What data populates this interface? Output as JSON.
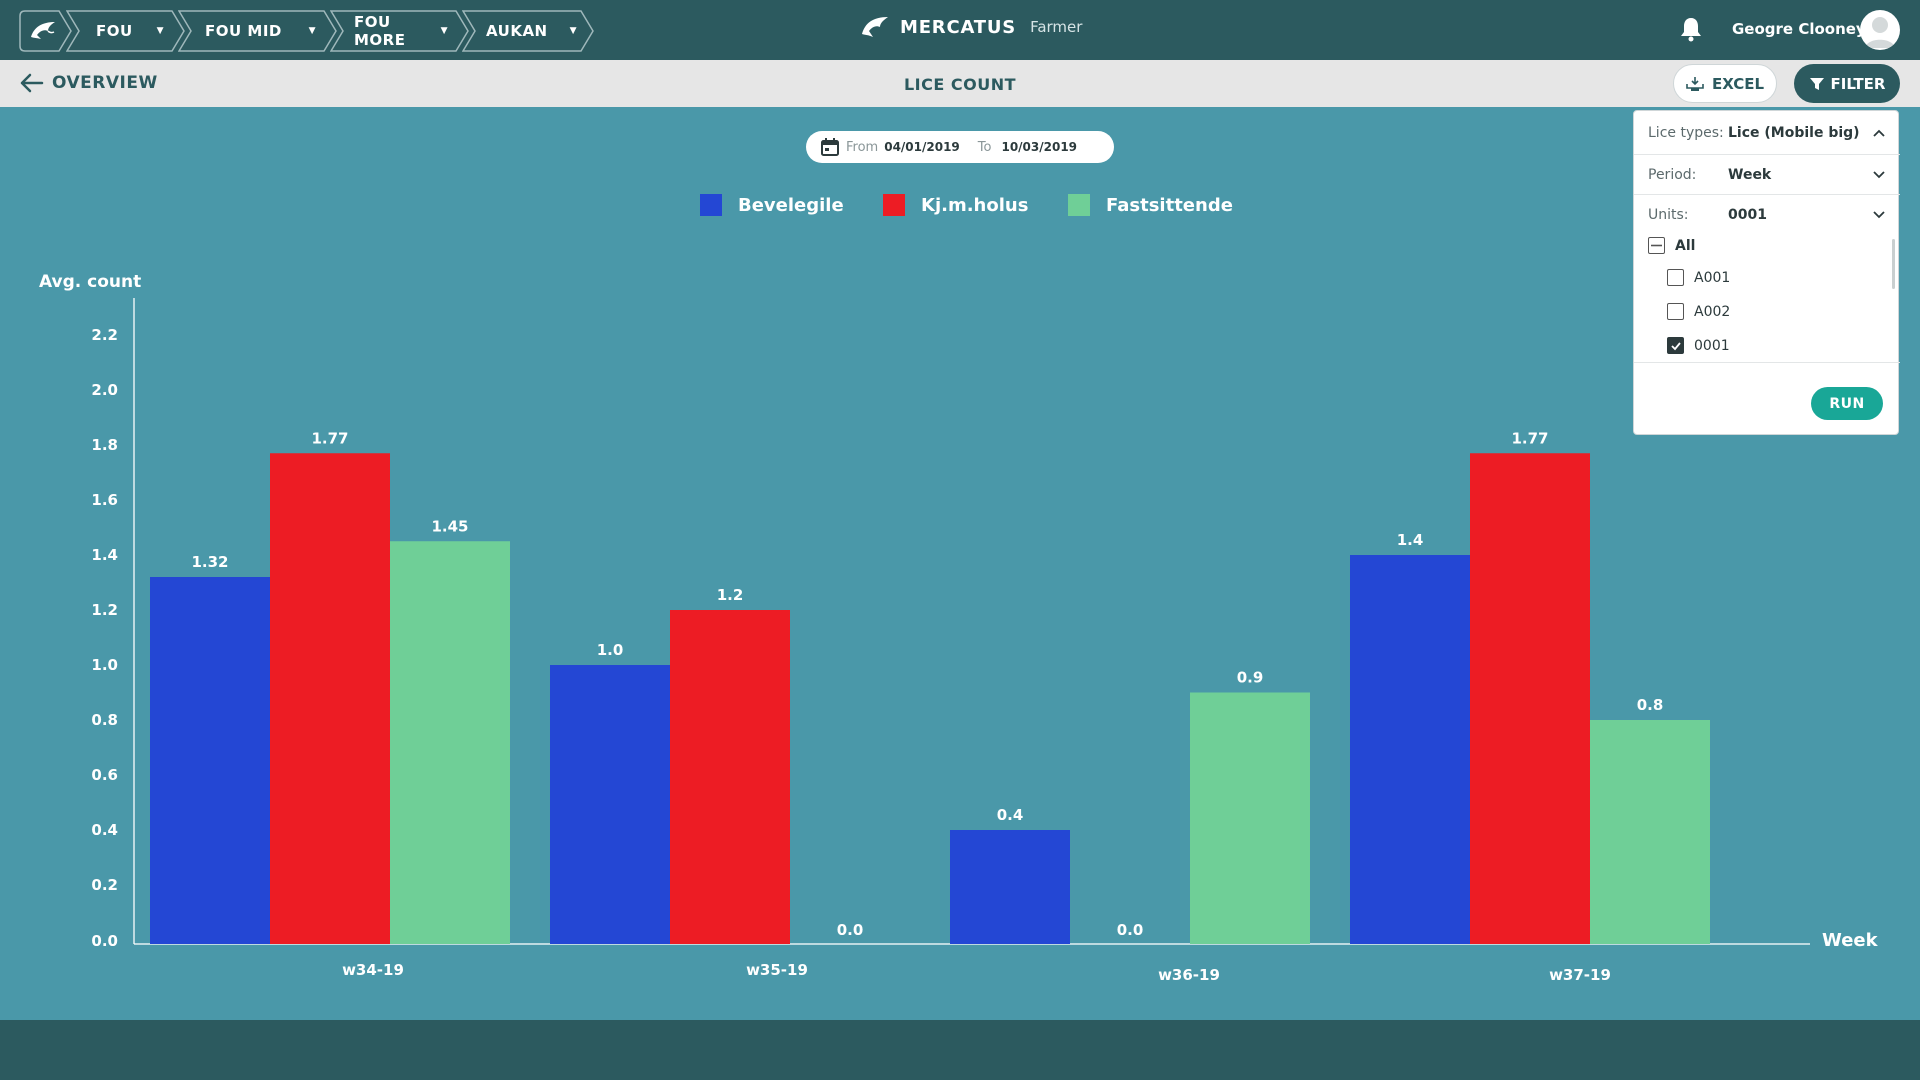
{
  "breadcrumbs": [
    {
      "label": "FOU"
    },
    {
      "label": "FOU MID"
    },
    {
      "label": "FOU MORE"
    },
    {
      "label": "AUKAN"
    }
  ],
  "brand": {
    "name": "MERCATUS",
    "product": "Farmer"
  },
  "user": {
    "name": "Gеogre Clooney"
  },
  "subheader": {
    "back_label": "OVERVIEW",
    "title": "LICE COUNT",
    "excel_label": "EXCEL",
    "filter_label": "FILTER"
  },
  "daterange": {
    "from_label": "From",
    "from_value": "04/01/2019",
    "to_label": "To",
    "to_value": "10/03/2019"
  },
  "filter_panel": {
    "lice_types_label": "Lice types:",
    "lice_types_value": "Lice (Mobile big)",
    "period_label": "Period:",
    "period_value": "Week",
    "units_label": "Units:",
    "units_value": "0001",
    "all_label": "All",
    "units": [
      {
        "label": "A001",
        "checked": false
      },
      {
        "label": "A002",
        "checked": false
      },
      {
        "label": "0001",
        "checked": true
      }
    ],
    "run_label": "RUN"
  },
  "colors": {
    "Bevelegile": "#2447d4",
    "Kj.m.holus": "#ed1c24",
    "Fastsittende": "#6fcf97"
  },
  "chart_data": {
    "type": "bar",
    "ylabel": "Avg. count",
    "xlabel": "Week",
    "ylim": [
      0,
      2.2
    ],
    "yticks": [
      "0.0",
      "0.2",
      "0.4",
      "0.6",
      "0.8",
      "1.0",
      "1.2",
      "1.4",
      "1.6",
      "1.8",
      "2.0",
      "2.2"
    ],
    "categories": [
      "w34-19",
      "w35-19",
      "w36-19",
      "w37-19"
    ],
    "series": [
      {
        "name": "Bevelegile",
        "values": [
          1.32,
          1.0,
          0.4,
          1.4
        ],
        "labels": [
          "1.32",
          "1.0",
          "0.4",
          "1.4"
        ]
      },
      {
        "name": "Kj.m.holus",
        "values": [
          1.77,
          1.2,
          0.0,
          1.77
        ],
        "labels": [
          "1.77",
          "1.2",
          "0.0",
          "1.77"
        ]
      },
      {
        "name": "Fastsittende",
        "values": [
          1.45,
          0.0,
          0.9,
          0.8
        ],
        "labels": [
          "1.45",
          "0.0",
          "0.9",
          "0.8"
        ]
      }
    ]
  }
}
